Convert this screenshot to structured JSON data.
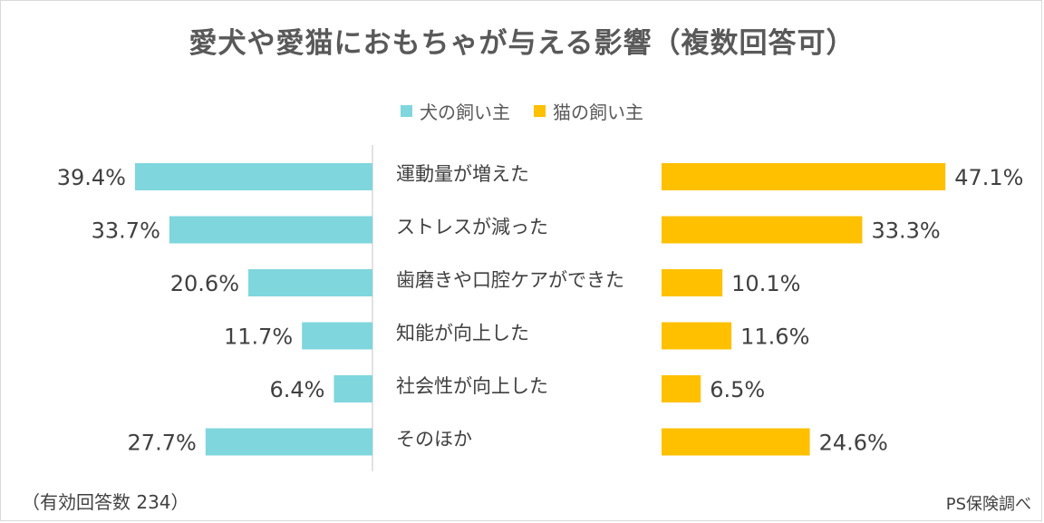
{
  "title": "愛犬や愛猫におもちゃが与える影響（複数回答可）",
  "legend": [
    {
      "label": "犬の飼い主",
      "color": "#7fd6dd"
    },
    {
      "label": "猫の飼い主",
      "color": "#ffc000"
    }
  ],
  "note": "（有効回答数 234）",
  "source": "PS保険調べ",
  "chart_data": {
    "type": "bar",
    "orientation": "horizontal-butterfly",
    "categories": [
      "運動量が増えた",
      "ストレスが減った",
      "歯磨きや口腔ケアができた",
      "知能が向上した",
      "社会性が向上した",
      "そのほか"
    ],
    "series": [
      {
        "name": "犬の飼い主",
        "values": [
          39.4,
          33.7,
          20.6,
          11.7,
          6.4,
          27.7
        ],
        "color": "#7fd6dd"
      },
      {
        "name": "猫の飼い主",
        "values": [
          47.1,
          33.3,
          10.1,
          11.6,
          6.5,
          24.6
        ],
        "color": "#ffc000"
      }
    ],
    "data_labels": [
      [
        "39.4%",
        "33.7%",
        "20.6%",
        "11.7%",
        "6.4%",
        "27.7%"
      ],
      [
        "47.1%",
        "33.3%",
        "10.1%",
        "11.6%",
        "6.5%",
        "24.6%"
      ]
    ],
    "unit": "%",
    "legend_position": "top",
    "grid": false
  }
}
